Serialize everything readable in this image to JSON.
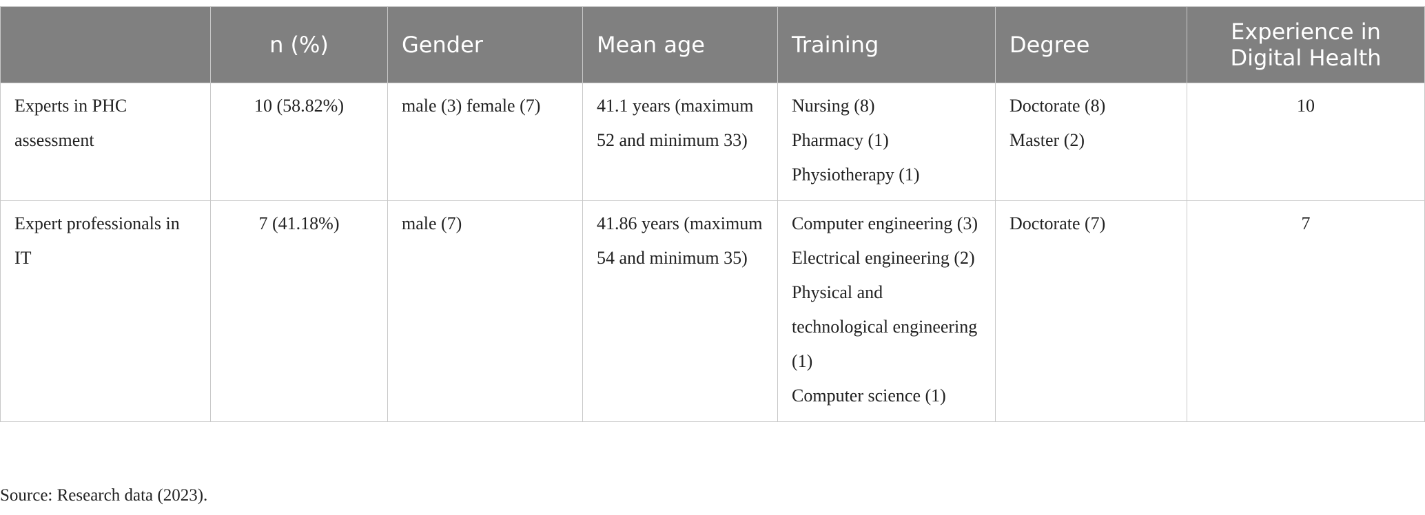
{
  "table": {
    "header": [
      "",
      "n (%)",
      "Gender",
      "Mean age",
      "Training",
      "Degree",
      "Experience in Digital Health"
    ],
    "rows": [
      [
        [
          "Experts in PHC assessment"
        ],
        [
          "10 (58.82%)"
        ],
        [
          "male (3) female (7)"
        ],
        [
          "41.1 years (maximum 52 and minimum 33)"
        ],
        [
          "Nursing (8)",
          "Pharmacy (1)",
          "Physiotherapy (1)"
        ],
        [
          "Doctorate (8)",
          "Master (2)"
        ],
        [
          "10"
        ]
      ],
      [
        [
          "Expert professionals in IT"
        ],
        [
          "7 (41.18%)"
        ],
        [
          "male (7)"
        ],
        [
          "41.86 years (maximum 54 and minimum 35)"
        ],
        [
          "Computer engineering (3)",
          "Electrical engineering (2)",
          "Physical and technological engineering (1)",
          "Computer science (1)"
        ],
        [
          "Doctorate (7)"
        ],
        [
          "7"
        ]
      ]
    ]
  },
  "footnote": "Source: Research data (2023)."
}
